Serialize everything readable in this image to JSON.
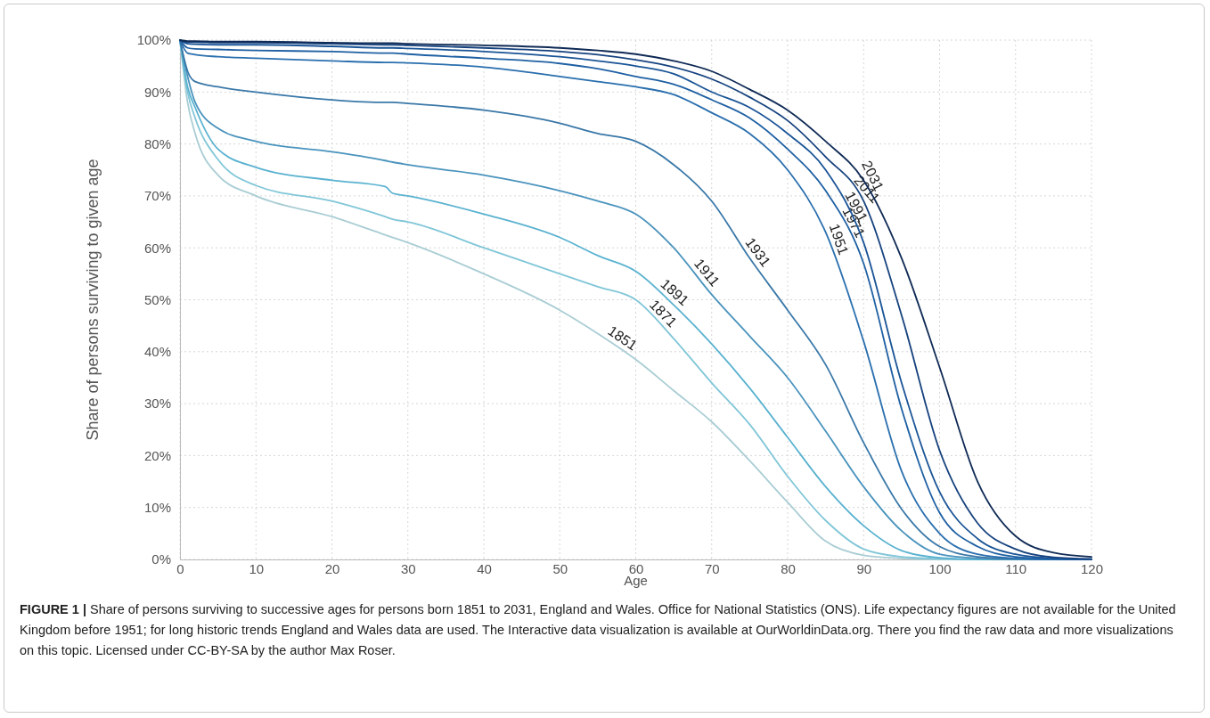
{
  "chart_data": {
    "type": "line",
    "xlabel": "Age",
    "ylabel": "Share of persons surviving to given age",
    "x": [
      0,
      1,
      2,
      5,
      10,
      20,
      27,
      28,
      30,
      40,
      50,
      55,
      60,
      65,
      70,
      75,
      80,
      85,
      90,
      95,
      100,
      105,
      110,
      115,
      120
    ],
    "series": [
      {
        "name": "1851",
        "color": "#a9cdd4",
        "values": [
          100,
          88,
          82,
          74,
          70,
          66,
          62.5,
          62,
          61,
          55,
          48,
          43.5,
          38.5,
          32.5,
          26.5,
          19,
          11,
          3.5,
          0.8,
          0.2,
          0,
          0,
          0,
          0,
          0
        ]
      },
      {
        "name": "1871",
        "color": "#80c6d8",
        "values": [
          100,
          90,
          85,
          77,
          72,
          69,
          66,
          65.5,
          65,
          60,
          55,
          52.5,
          50,
          42.5,
          34,
          26,
          16,
          7.5,
          2,
          0.5,
          0.1,
          0,
          0,
          0,
          0
        ]
      },
      {
        "name": "1891",
        "color": "#5ab2d0",
        "values": [
          100,
          91,
          87,
          79,
          75.5,
          73,
          71.8,
          70.5,
          70,
          66.5,
          62,
          58.5,
          55.5,
          49,
          41.5,
          33,
          23.5,
          14,
          6.5,
          1.7,
          0.3,
          0,
          0,
          0,
          0
        ]
      },
      {
        "name": "1911",
        "color": "#4a93bd",
        "values": [
          100,
          93,
          88,
          83,
          80.5,
          78.5,
          76.8,
          76.5,
          76,
          74,
          71,
          69,
          66.5,
          60,
          51,
          43,
          35,
          24.7,
          14,
          5.5,
          1,
          0.2,
          0,
          0,
          0
        ]
      },
      {
        "name": "1931",
        "color": "#3a78a8",
        "values": [
          100,
          94,
          92,
          91,
          90,
          88.5,
          88,
          88,
          87.8,
          86.5,
          84,
          82,
          80.5,
          76,
          69,
          58,
          48,
          37.5,
          22.5,
          9.7,
          2.5,
          0.5,
          0.1,
          0,
          0
        ]
      },
      {
        "name": "1951",
        "color": "#2a6fae",
        "values": [
          100,
          97.5,
          97.2,
          96.8,
          96.5,
          96,
          95.7,
          95.7,
          95.6,
          94.8,
          93,
          92,
          91,
          89.5,
          86,
          82,
          75,
          63,
          42,
          17,
          5,
          1,
          0.2,
          0,
          0
        ]
      },
      {
        "name": "1971",
        "color": "#1f60a3",
        "values": [
          100,
          98.5,
          98.3,
          98.2,
          98,
          97.8,
          97.5,
          97.5,
          97.3,
          96.5,
          95.5,
          94.5,
          93,
          91.5,
          88.5,
          85,
          79,
          71,
          57,
          29,
          9,
          2.5,
          0.5,
          0.1,
          0
        ]
      },
      {
        "name": "1991",
        "color": "#1a5496",
        "values": [
          100,
          99.3,
          99.2,
          99.1,
          99.1,
          98.8,
          98.5,
          98.5,
          98.4,
          97.8,
          96.8,
          96,
          95,
          93.5,
          90,
          87,
          82,
          75,
          61,
          34,
          13,
          4,
          1,
          0.2,
          0
        ]
      },
      {
        "name": "2011",
        "color": "#16427e",
        "values": [
          100,
          99.6,
          99.6,
          99.5,
          99.5,
          99.3,
          99.1,
          99.1,
          99,
          98.5,
          97.8,
          97.2,
          96.2,
          94.8,
          92.5,
          89,
          84.5,
          77.5,
          69,
          47,
          21,
          7,
          2,
          0.4,
          0.1
        ]
      },
      {
        "name": "2031",
        "color": "#0f2a55",
        "values": [
          100,
          99.8,
          99.8,
          99.7,
          99.7,
          99.5,
          99.4,
          99.4,
          99.3,
          99,
          98.5,
          98,
          97.3,
          96,
          94,
          90.5,
          86.5,
          80.5,
          73,
          58,
          37,
          15,
          4.5,
          1.3,
          0.5
        ]
      }
    ],
    "xlim": [
      0,
      120
    ],
    "xticks": [
      0,
      10,
      20,
      30,
      40,
      50,
      60,
      70,
      80,
      90,
      100,
      110,
      120
    ],
    "ylim": [
      0,
      100
    ],
    "yticks": [
      {
        "value": 0,
        "label": "0%"
      },
      {
        "value": 10,
        "label": "10%"
      },
      {
        "value": 20,
        "label": "20%"
      },
      {
        "value": 30,
        "label": "30%"
      },
      {
        "value": 40,
        "label": "40%"
      },
      {
        "value": 50,
        "label": "50%"
      },
      {
        "value": 60,
        "label": "60%"
      },
      {
        "value": 70,
        "label": "70%"
      },
      {
        "value": 80,
        "label": "80%"
      },
      {
        "value": 90,
        "label": "90%"
      },
      {
        "value": 100,
        "label": "100%"
      }
    ],
    "grid": true,
    "marker": "none",
    "line_style": "solid",
    "annotations": [
      "FIGURE 1 |",
      "Share of persons surviving to successive ages for persons born 1851 to 2031, England and Wales. Office for National Statistics (ONS). Life expectancy figures are not available for the United Kingdom before 1951; for long historic trends England and Wales data are used. The Interactive data visualization is available at OurWorldinData.org. There you find the raw data and more visualizations on this topic. Licensed under CC-BY-SA by the author Max Roser."
    ]
  }
}
